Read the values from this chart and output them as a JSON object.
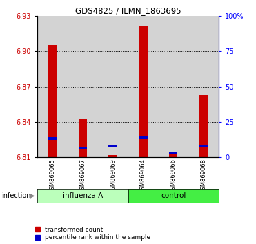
{
  "title": "GDS4825 / ILMN_1863695",
  "samples": [
    "GSM869065",
    "GSM869067",
    "GSM869069",
    "GSM869064",
    "GSM869066",
    "GSM869068"
  ],
  "red_values": [
    6.905,
    6.843,
    6.812,
    6.921,
    6.813,
    6.863
  ],
  "blue_values": [
    6.826,
    6.818,
    6.82,
    6.827,
    6.814,
    6.82
  ],
  "y_min": 6.81,
  "y_max": 6.93,
  "y_ticks_left": [
    6.81,
    6.84,
    6.87,
    6.9,
    6.93
  ],
  "y_ticks_right_vals": [
    0,
    25,
    50,
    75,
    100
  ],
  "y_ticks_right_labels": [
    "0",
    "25",
    "50",
    "75",
    "100%"
  ],
  "dotted_lines": [
    6.84,
    6.87,
    6.9
  ],
  "red_color": "#CC0000",
  "blue_color": "#0000CC",
  "base": 6.81,
  "bg_color": "#D3D3D3",
  "inf_color": "#BBFFBB",
  "ctrl_color": "#44EE44",
  "inf_label": "influenza A",
  "ctrl_label": "control",
  "infection_label": "infection"
}
